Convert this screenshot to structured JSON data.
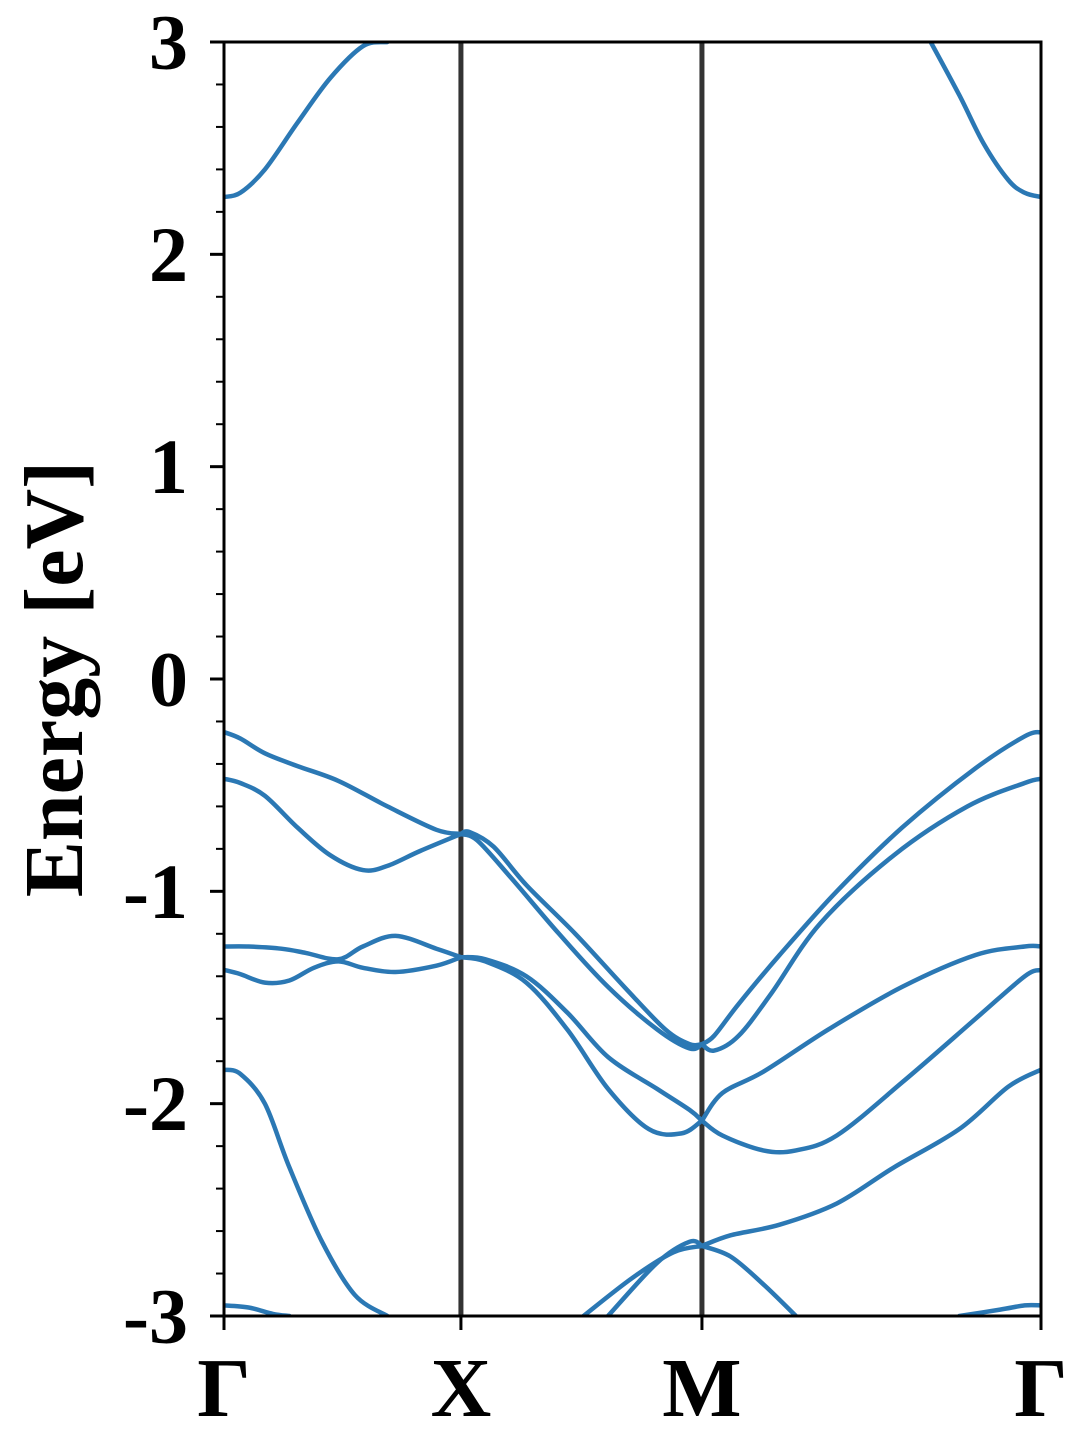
{
  "chart_data": {
    "type": "line",
    "title": "",
    "xlabel": "",
    "ylabel": "Energy [eV]",
    "ylim": [
      -3,
      3
    ],
    "xlim": [
      0,
      1
    ],
    "yticks": [
      -3,
      -2,
      -1,
      0,
      1,
      2,
      3
    ],
    "ytick_labels": [
      "-3",
      "-2",
      "-1",
      "0",
      "1",
      "2",
      "3"
    ],
    "minor_ytick_step": 0.2,
    "high_symmetry_points": [
      {
        "label": "Γ",
        "x": 0.0
      },
      {
        "label": "X",
        "x": 0.29
      },
      {
        "label": "M",
        "x": 0.585
      },
      {
        "label": "Γ",
        "x": 1.0
      }
    ],
    "grid": false,
    "colors": {
      "band": "#2b78b4",
      "divider": "#333333",
      "axis": "#000000"
    },
    "series": [
      {
        "x": [
          0,
          0.02,
          0.05,
          0.09,
          0.13,
          0.17,
          0.2
        ],
        "values": [
          2.27,
          2.29,
          2.4,
          2.62,
          2.83,
          2.98,
          3.0
        ]
      },
      {
        "x": [
          0.865,
          0.9,
          0.93,
          0.96,
          0.98,
          1.0
        ],
        "values": [
          3.0,
          2.75,
          2.52,
          2.35,
          2.29,
          2.27
        ]
      },
      {
        "x": [
          0,
          0.02,
          0.05,
          0.09,
          0.14,
          0.2,
          0.26,
          0.29
        ],
        "values": [
          -0.25,
          -0.28,
          -0.35,
          -0.41,
          -0.48,
          -0.6,
          -0.71,
          -0.73
        ]
      },
      {
        "x": [
          0,
          0.02,
          0.05,
          0.09,
          0.13,
          0.17,
          0.2,
          0.24,
          0.29
        ],
        "values": [
          -0.47,
          -0.49,
          -0.55,
          -0.7,
          -0.83,
          -0.9,
          -0.88,
          -0.81,
          -0.73
        ]
      },
      {
        "x": [
          0.29,
          0.3,
          0.33,
          0.37,
          0.43,
          0.49,
          0.54,
          0.57,
          0.585
        ],
        "values": [
          -0.73,
          -0.72,
          -0.79,
          -0.97,
          -1.2,
          -1.45,
          -1.65,
          -1.72,
          -1.72
        ]
      },
      {
        "x": [
          0.29,
          0.31,
          0.35,
          0.41,
          0.47,
          0.53,
          0.57,
          0.585
        ],
        "values": [
          -0.73,
          -0.76,
          -0.93,
          -1.2,
          -1.45,
          -1.65,
          -1.74,
          -1.72
        ]
      },
      {
        "x": [
          0.585,
          0.6,
          0.63,
          0.68,
          0.75,
          0.83,
          0.92,
          0.98,
          1.0
        ],
        "values": [
          -1.72,
          -1.68,
          -1.53,
          -1.3,
          -1.0,
          -0.7,
          -0.42,
          -0.27,
          -0.25
        ]
      },
      {
        "x": [
          0.585,
          0.6,
          0.63,
          0.67,
          0.73,
          0.82,
          0.91,
          0.98,
          1.0
        ],
        "values": [
          -1.72,
          -1.75,
          -1.68,
          -1.48,
          -1.15,
          -0.83,
          -0.6,
          -0.49,
          -0.47
        ]
      },
      {
        "x": [
          0,
          0.03,
          0.07,
          0.1,
          0.14,
          0.17,
          0.21,
          0.26,
          0.29
        ],
        "values": [
          -1.26,
          -1.26,
          -1.27,
          -1.29,
          -1.32,
          -1.26,
          -1.21,
          -1.27,
          -1.31
        ]
      },
      {
        "x": [
          0,
          0.02,
          0.05,
          0.08,
          0.11,
          0.14,
          0.17,
          0.21,
          0.26,
          0.29
        ],
        "values": [
          -1.37,
          -1.39,
          -1.43,
          -1.42,
          -1.36,
          -1.33,
          -1.36,
          -1.38,
          -1.35,
          -1.31
        ]
      },
      {
        "x": [
          0.29,
          0.32,
          0.37,
          0.42,
          0.47,
          0.52,
          0.56,
          0.585
        ],
        "values": [
          -1.31,
          -1.33,
          -1.43,
          -1.65,
          -1.93,
          -2.12,
          -2.14,
          -2.08
        ]
      },
      {
        "x": [
          0.29,
          0.32,
          0.37,
          0.42,
          0.47,
          0.53,
          0.57,
          0.585
        ],
        "values": [
          -1.31,
          -1.32,
          -1.4,
          -1.57,
          -1.78,
          -1.93,
          -2.03,
          -2.08
        ]
      },
      {
        "x": [
          0.585,
          0.61,
          0.66,
          0.74,
          0.83,
          0.92,
          0.98,
          1.0
        ],
        "values": [
          -2.08,
          -1.95,
          -1.85,
          -1.65,
          -1.45,
          -1.3,
          -1.26,
          -1.26
        ]
      },
      {
        "x": [
          0.585,
          0.61,
          0.66,
          0.7,
          0.75,
          0.83,
          0.92,
          0.98,
          1.0
        ],
        "values": [
          -2.08,
          -2.15,
          -2.22,
          -2.22,
          -2.15,
          -1.9,
          -1.6,
          -1.4,
          -1.37
        ]
      },
      {
        "x": [
          0,
          0.02,
          0.05,
          0.08,
          0.12,
          0.16,
          0.2
        ],
        "values": [
          -1.84,
          -1.86,
          -2.0,
          -2.3,
          -2.65,
          -2.9,
          -3.0
        ]
      },
      {
        "x": [
          0,
          0.03,
          0.06,
          0.08
        ],
        "values": [
          -2.95,
          -2.96,
          -2.99,
          -3.0
        ]
      },
      {
        "x": [
          0.44,
          0.5,
          0.55,
          0.585
        ],
        "values": [
          -3.0,
          -2.82,
          -2.7,
          -2.67
        ]
      },
      {
        "x": [
          0.47,
          0.53,
          0.57,
          0.585
        ],
        "values": [
          -3.0,
          -2.75,
          -2.65,
          -2.67
        ]
      },
      {
        "x": [
          0.585,
          0.62,
          0.66,
          0.7
        ],
        "values": [
          -2.67,
          -2.72,
          -2.85,
          -3.0
        ]
      },
      {
        "x": [
          0.585,
          0.62,
          0.68,
          0.75,
          0.82,
          0.9,
          0.96,
          1.0
        ],
        "values": [
          -2.67,
          -2.62,
          -2.57,
          -2.47,
          -2.3,
          -2.12,
          -1.92,
          -1.84
        ]
      },
      {
        "x": [
          0.9,
          0.95,
          0.98,
          1.0
        ],
        "values": [
          -3.0,
          -2.97,
          -2.95,
          -2.95
        ]
      }
    ]
  }
}
